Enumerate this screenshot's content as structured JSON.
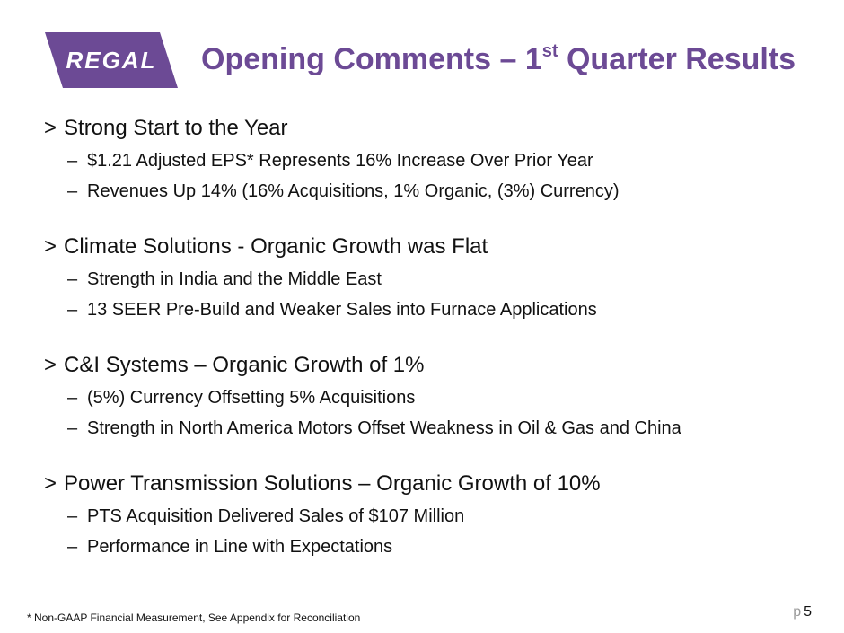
{
  "logo": {
    "text": "REGAL",
    "color": "#6c4a95"
  },
  "title": {
    "main": "Opening Comments – 1",
    "sup": "st",
    "rest": " Quarter Results",
    "color": "#6c4a95"
  },
  "sections": [
    {
      "heading": "Strong Start to the Year",
      "bullets": [
        "$1.21 Adjusted EPS* Represents 16% Increase Over Prior Year",
        "Revenues Up 14% (16% Acquisitions, 1% Organic, (3%) Currency)"
      ]
    },
    {
      "heading": "Climate Solutions - Organic Growth was Flat",
      "bullets": [
        "Strength in India and the Middle East",
        "13 SEER Pre-Build and Weaker Sales into Furnace Applications"
      ]
    },
    {
      "heading": "C&I Systems – Organic Growth of 1%",
      "bullets": [
        "(5%) Currency Offsetting 5% Acquisitions",
        "Strength in North America Motors Offset Weakness in Oil & Gas and China"
      ]
    },
    {
      "heading": "Power Transmission Solutions – Organic Growth of 10%",
      "bullets": [
        "PTS Acquisition Delivered Sales of $107 Million",
        "Performance in Line with Expectations"
      ]
    }
  ],
  "heading_marker": ">",
  "bullet_marker": "–",
  "footnote": "*  Non-GAAP Financial Measurement, See Appendix for Reconciliation",
  "page": {
    "prefix": "p",
    "number": "5"
  }
}
